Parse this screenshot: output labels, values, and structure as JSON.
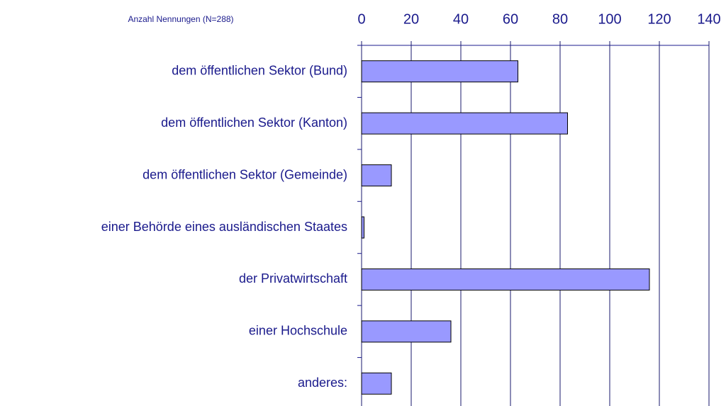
{
  "chart_data": {
    "type": "bar",
    "orientation": "horizontal",
    "title": "Anzahl Nennungen (N=288)",
    "categories": [
      "dem öffentlichen Sektor (Bund)",
      "dem öffentlichen Sektor (Kanton)",
      "dem öffentlichen Sektor (Gemeinde)",
      "einer Behörde eines ausländischen Staates",
      "der Privatwirtschaft",
      "einer Hochschule",
      "anderes:"
    ],
    "values": [
      63,
      83,
      12,
      1,
      116,
      36,
      12
    ],
    "color": "#9999ff",
    "xlim": [
      0,
      140
    ],
    "xticks": [
      0,
      20,
      40,
      60,
      80,
      100,
      120,
      140
    ],
    "grid": true
  }
}
